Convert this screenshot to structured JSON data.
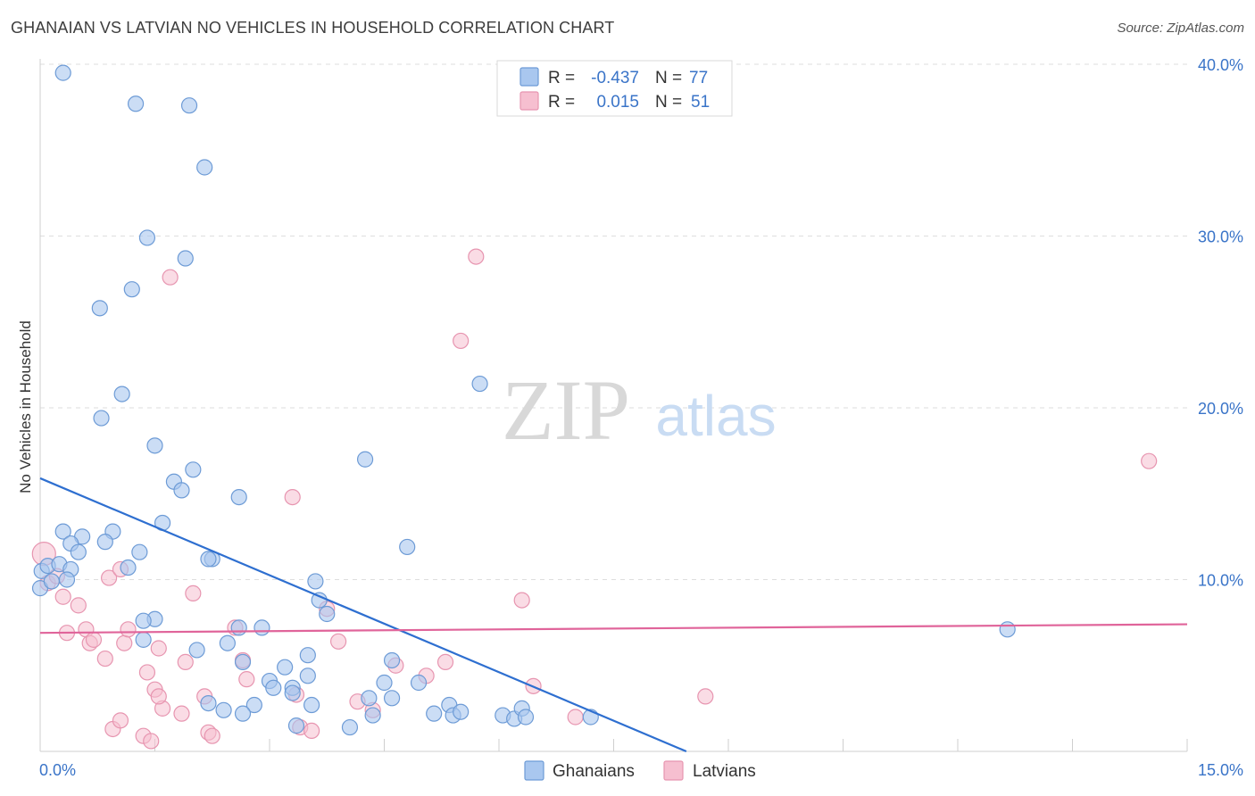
{
  "header": {
    "title": "GHANAIAN VS LATVIAN NO VEHICLES IN HOUSEHOLD CORRELATION CHART",
    "source": "Source: ZipAtlas.com"
  },
  "watermark": {
    "zip": "ZIP",
    "atlas": "atlas"
  },
  "colors": {
    "ghanaians_fill": "#a9c7ef",
    "ghanaians_stroke": "#6d9bd6",
    "ghanaians_line": "#2e6fd0",
    "latvians_fill": "#f6bfd0",
    "latvians_stroke": "#e795b0",
    "latvians_line": "#e0649a",
    "value_text": "#3a74c8"
  },
  "stats": {
    "r_label": "R =",
    "n_label": "N =",
    "rows": [
      {
        "series": "Ghanaians",
        "r": "-0.437",
        "n": "77"
      },
      {
        "series": "Latvians",
        "r": "0.015",
        "n": "51"
      }
    ]
  },
  "chart_data": {
    "type": "scatter",
    "title": "GHANAIAN VS LATVIAN NO VEHICLES IN HOUSEHOLD CORRELATION CHART",
    "xlabel": "",
    "ylabel": "No Vehicles in Household",
    "xlim": [
      0,
      15
    ],
    "ylim": [
      0,
      40
    ],
    "x_tick_labels": [
      "0.0%",
      "15.0%"
    ],
    "y_ticks": [
      10,
      20,
      30,
      40
    ],
    "y_tick_labels": [
      "10.0%",
      "20.0%",
      "30.0%",
      "40.0%"
    ],
    "legend_position": "bottom-center",
    "series": [
      {
        "name": "Ghanaians",
        "x": [
          0.3,
          1.25,
          1.95,
          2.15,
          1.4,
          1.9,
          1.2,
          0.78,
          1.07,
          0.8,
          1.5,
          2.0,
          1.75,
          1.85,
          0.3,
          0.55,
          0.95,
          0.4,
          0.85,
          0.5,
          2.25,
          1.3,
          0.0,
          0.02,
          0.1,
          0.25,
          1.15,
          0.4,
          2.2,
          0.35,
          0.15,
          2.6,
          1.6,
          1.5,
          3.6,
          4.25,
          5.75,
          4.8,
          3.65,
          3.75,
          1.35,
          3.5,
          2.45,
          1.35,
          2.9,
          2.05,
          2.6,
          2.65,
          3.3,
          2.4,
          3.2,
          3.3,
          3.5,
          3.55,
          4.6,
          4.95,
          4.5,
          3.0,
          3.05,
          2.8,
          2.2,
          2.65,
          3.35,
          4.05,
          4.6,
          5.35,
          5.4,
          5.5,
          4.3,
          4.35,
          5.15,
          6.05,
          6.2,
          6.3,
          6.35,
          7.2,
          12.65
        ],
        "y": [
          39.5,
          37.7,
          37.6,
          34.0,
          29.9,
          28.7,
          26.9,
          25.8,
          20.8,
          19.4,
          17.8,
          16.4,
          15.7,
          15.2,
          12.8,
          12.5,
          12.8,
          12.1,
          12.2,
          11.6,
          11.2,
          11.6,
          9.5,
          10.5,
          10.8,
          10.9,
          10.7,
          10.6,
          11.2,
          10.0,
          9.9,
          14.8,
          13.3,
          7.7,
          9.9,
          17.0,
          21.4,
          11.9,
          8.8,
          8.0,
          6.5,
          5.6,
          6.3,
          7.6,
          7.2,
          5.9,
          7.2,
          5.2,
          3.7,
          2.4,
          4.9,
          3.4,
          4.4,
          2.7,
          5.3,
          4.0,
          4.0,
          4.1,
          3.7,
          2.7,
          2.8,
          2.2,
          1.5,
          1.4,
          3.1,
          2.7,
          2.1,
          2.3,
          3.1,
          2.1,
          2.2,
          2.1,
          1.9,
          2.5,
          2.0,
          2.0,
          7.1
        ]
      },
      {
        "name": "Latvians",
        "x": [
          0.05,
          0.1,
          0.22,
          0.3,
          0.35,
          0.5,
          0.6,
          0.65,
          0.7,
          0.85,
          0.9,
          1.05,
          1.1,
          1.15,
          1.4,
          1.5,
          1.55,
          1.6,
          1.7,
          1.9,
          2.0,
          2.15,
          2.2,
          2.25,
          2.55,
          2.65,
          2.7,
          3.3,
          3.35,
          3.4,
          3.55,
          3.75,
          3.9,
          4.15,
          4.35,
          4.65,
          5.05,
          5.3,
          5.5,
          5.7,
          6.3,
          6.45,
          7.0,
          8.7,
          14.5,
          0.95,
          1.05,
          1.35,
          1.45,
          1.55,
          1.85
        ],
        "y": [
          11.5,
          9.8,
          10.2,
          9.0,
          6.9,
          8.5,
          7.1,
          6.3,
          6.5,
          5.4,
          10.1,
          10.6,
          6.3,
          7.1,
          4.6,
          3.6,
          6.0,
          2.5,
          27.6,
          5.2,
          9.2,
          3.2,
          1.1,
          0.9,
          7.2,
          5.3,
          4.2,
          14.8,
          3.3,
          1.4,
          1.2,
          8.3,
          6.4,
          2.9,
          2.4,
          5.0,
          4.4,
          5.2,
          23.9,
          28.8,
          8.8,
          3.8,
          2.0,
          3.2,
          16.9,
          1.3,
          1.8,
          0.9,
          0.6,
          3.2,
          2.2
        ]
      }
    ],
    "trend_lines": [
      {
        "series": "Ghanaians",
        "x": [
          0.0,
          8.45
        ],
        "y": [
          15.9,
          0.0
        ]
      },
      {
        "series": "Latvians",
        "x": [
          0.0,
          15.0
        ],
        "y": [
          6.9,
          7.4
        ]
      }
    ]
  },
  "legend": {
    "items": [
      {
        "label": "Ghanaians"
      },
      {
        "label": "Latvians"
      }
    ]
  }
}
